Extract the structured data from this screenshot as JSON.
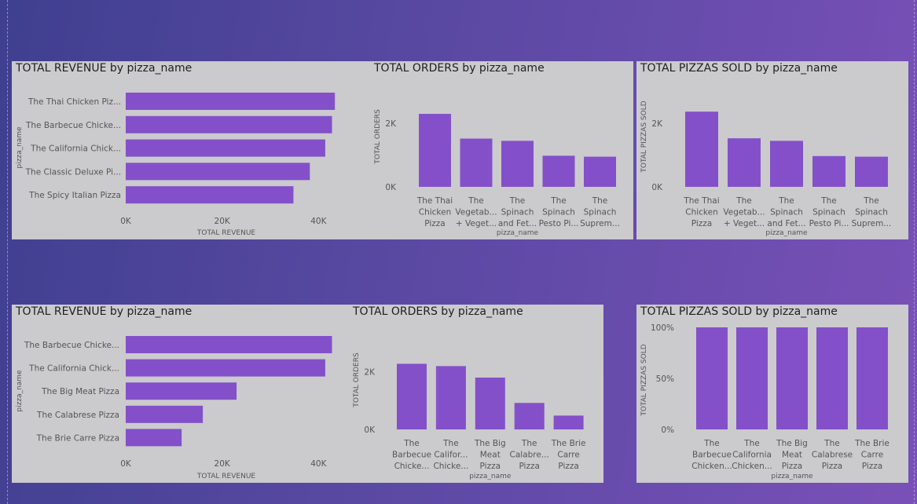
{
  "colors": {
    "bar": "#8350c9",
    "panel": "#cbcacd",
    "text": "#555555",
    "title": "#1f1f1f"
  },
  "charts": [
    {
      "id": "c1",
      "title": "TOTAL REVENUE by pizza_name",
      "chart_data": {
        "type": "bar",
        "orientation": "horizontal",
        "categories": [
          "The Thai Chicken Piz...",
          "The Barbecue Chicke...",
          "The California Chick...",
          "The Classic Deluxe Pi...",
          "The Spicy Italian Pizza"
        ],
        "values": [
          43400,
          42800,
          41400,
          38200,
          34800
        ],
        "xlabel": "TOTAL REVENUE",
        "ylabel": "pizza_name",
        "xlim": [
          0,
          45000
        ],
        "ticks": [
          {
            "v": 0,
            "label": "0K"
          },
          {
            "v": 20000,
            "label": "20K"
          },
          {
            "v": 40000,
            "label": "40K"
          }
        ]
      }
    },
    {
      "id": "c2",
      "title": "TOTAL ORDERS by pizza_name",
      "chart_data": {
        "type": "bar",
        "orientation": "vertical",
        "categories": [
          [
            "The Thai",
            "Chicken",
            "Pizza"
          ],
          [
            "The",
            "Vegetab...",
            "+ Veget..."
          ],
          [
            "The",
            "Spinach",
            "and Fet..."
          ],
          [
            "The",
            "Spinach",
            "Pesto Pi..."
          ],
          [
            "The",
            "Spinach",
            "Suprem..."
          ]
        ],
        "values": [
          2300,
          1520,
          1450,
          980,
          950
        ],
        "xlabel": "pizza_name",
        "ylabel": "TOTAL ORDERS",
        "ylim": [
          0,
          2400
        ],
        "ticks": [
          {
            "v": 0,
            "label": "0K"
          },
          {
            "v": 2000,
            "label": "2K"
          }
        ]
      }
    },
    {
      "id": "c3",
      "title": "TOTAL PIZZAS SOLD by pizza_name",
      "chart_data": {
        "type": "bar",
        "orientation": "vertical",
        "categories": [
          [
            "The Thai",
            "Chicken",
            "Pizza"
          ],
          [
            "The",
            "Vegetab...",
            "+ Veget..."
          ],
          [
            "The",
            "Spinach",
            "and Fet..."
          ],
          [
            "The",
            "Spinach",
            "Pesto Pi..."
          ],
          [
            "The",
            "Spinach",
            "Suprem..."
          ]
        ],
        "values": [
          2370,
          1530,
          1450,
          970,
          950
        ],
        "xlabel": "pizza_name",
        "ylabel": "TOTAL PIZZAS SOLD",
        "ylim": [
          0,
          2400
        ],
        "ticks": [
          {
            "v": 0,
            "label": "0K"
          },
          {
            "v": 2000,
            "label": "2K"
          }
        ]
      }
    },
    {
      "id": "c4",
      "title": "TOTAL REVENUE by pizza_name",
      "chart_data": {
        "type": "bar",
        "orientation": "horizontal",
        "categories": [
          "The Barbecue Chicke...",
          "The California Chick...",
          "The Big Meat Pizza",
          "The Calabrese Pizza",
          "The Brie Carre Pizza"
        ],
        "values": [
          42800,
          41400,
          23000,
          16000,
          11600
        ],
        "xlabel": "TOTAL REVENUE",
        "ylabel": "pizza_name",
        "xlim": [
          0,
          45000
        ],
        "ticks": [
          {
            "v": 0,
            "label": "0K"
          },
          {
            "v": 20000,
            "label": "20K"
          },
          {
            "v": 40000,
            "label": "40K"
          }
        ]
      }
    },
    {
      "id": "c5",
      "title": "TOTAL ORDERS by pizza_name",
      "chart_data": {
        "type": "bar",
        "orientation": "vertical",
        "categories": [
          [
            "The",
            "Barbecue",
            "Chicke..."
          ],
          [
            "The",
            "Califor...",
            "Chicke..."
          ],
          [
            "The Big",
            "Meat",
            "Pizza"
          ],
          [
            "The",
            "Calabre...",
            "Pizza"
          ],
          [
            "The Brie",
            "Carre",
            "Pizza"
          ]
        ],
        "values": [
          2280,
          2200,
          1800,
          920,
          480
        ],
        "xlabel": "pizza_name",
        "ylabel": "TOTAL ORDERS",
        "ylim": [
          0,
          2400
        ],
        "ticks": [
          {
            "v": 0,
            "label": "0K"
          },
          {
            "v": 2000,
            "label": "2K"
          }
        ]
      }
    },
    {
      "id": "c6",
      "title": "TOTAL PIZZAS SOLD by pizza_name",
      "chart_data": {
        "type": "bar",
        "orientation": "vertical",
        "categories": [
          [
            "The",
            "Barbecue",
            "Chicken..."
          ],
          [
            "The",
            "California",
            "Chicken..."
          ],
          [
            "The Big",
            "Meat",
            "Pizza"
          ],
          [
            "The",
            "Calabrese",
            "Pizza"
          ],
          [
            "The Brie",
            "Carre",
            "Pizza"
          ]
        ],
        "values": [
          100,
          100,
          100,
          100,
          100
        ],
        "xlabel": "pizza_name",
        "ylabel": "TOTAL PIZZAS SOLD",
        "ylim": [
          0,
          100
        ],
        "ticks": [
          {
            "v": 0,
            "label": "0%"
          },
          {
            "v": 50,
            "label": "50%"
          },
          {
            "v": 100,
            "label": "100%"
          }
        ]
      }
    }
  ]
}
